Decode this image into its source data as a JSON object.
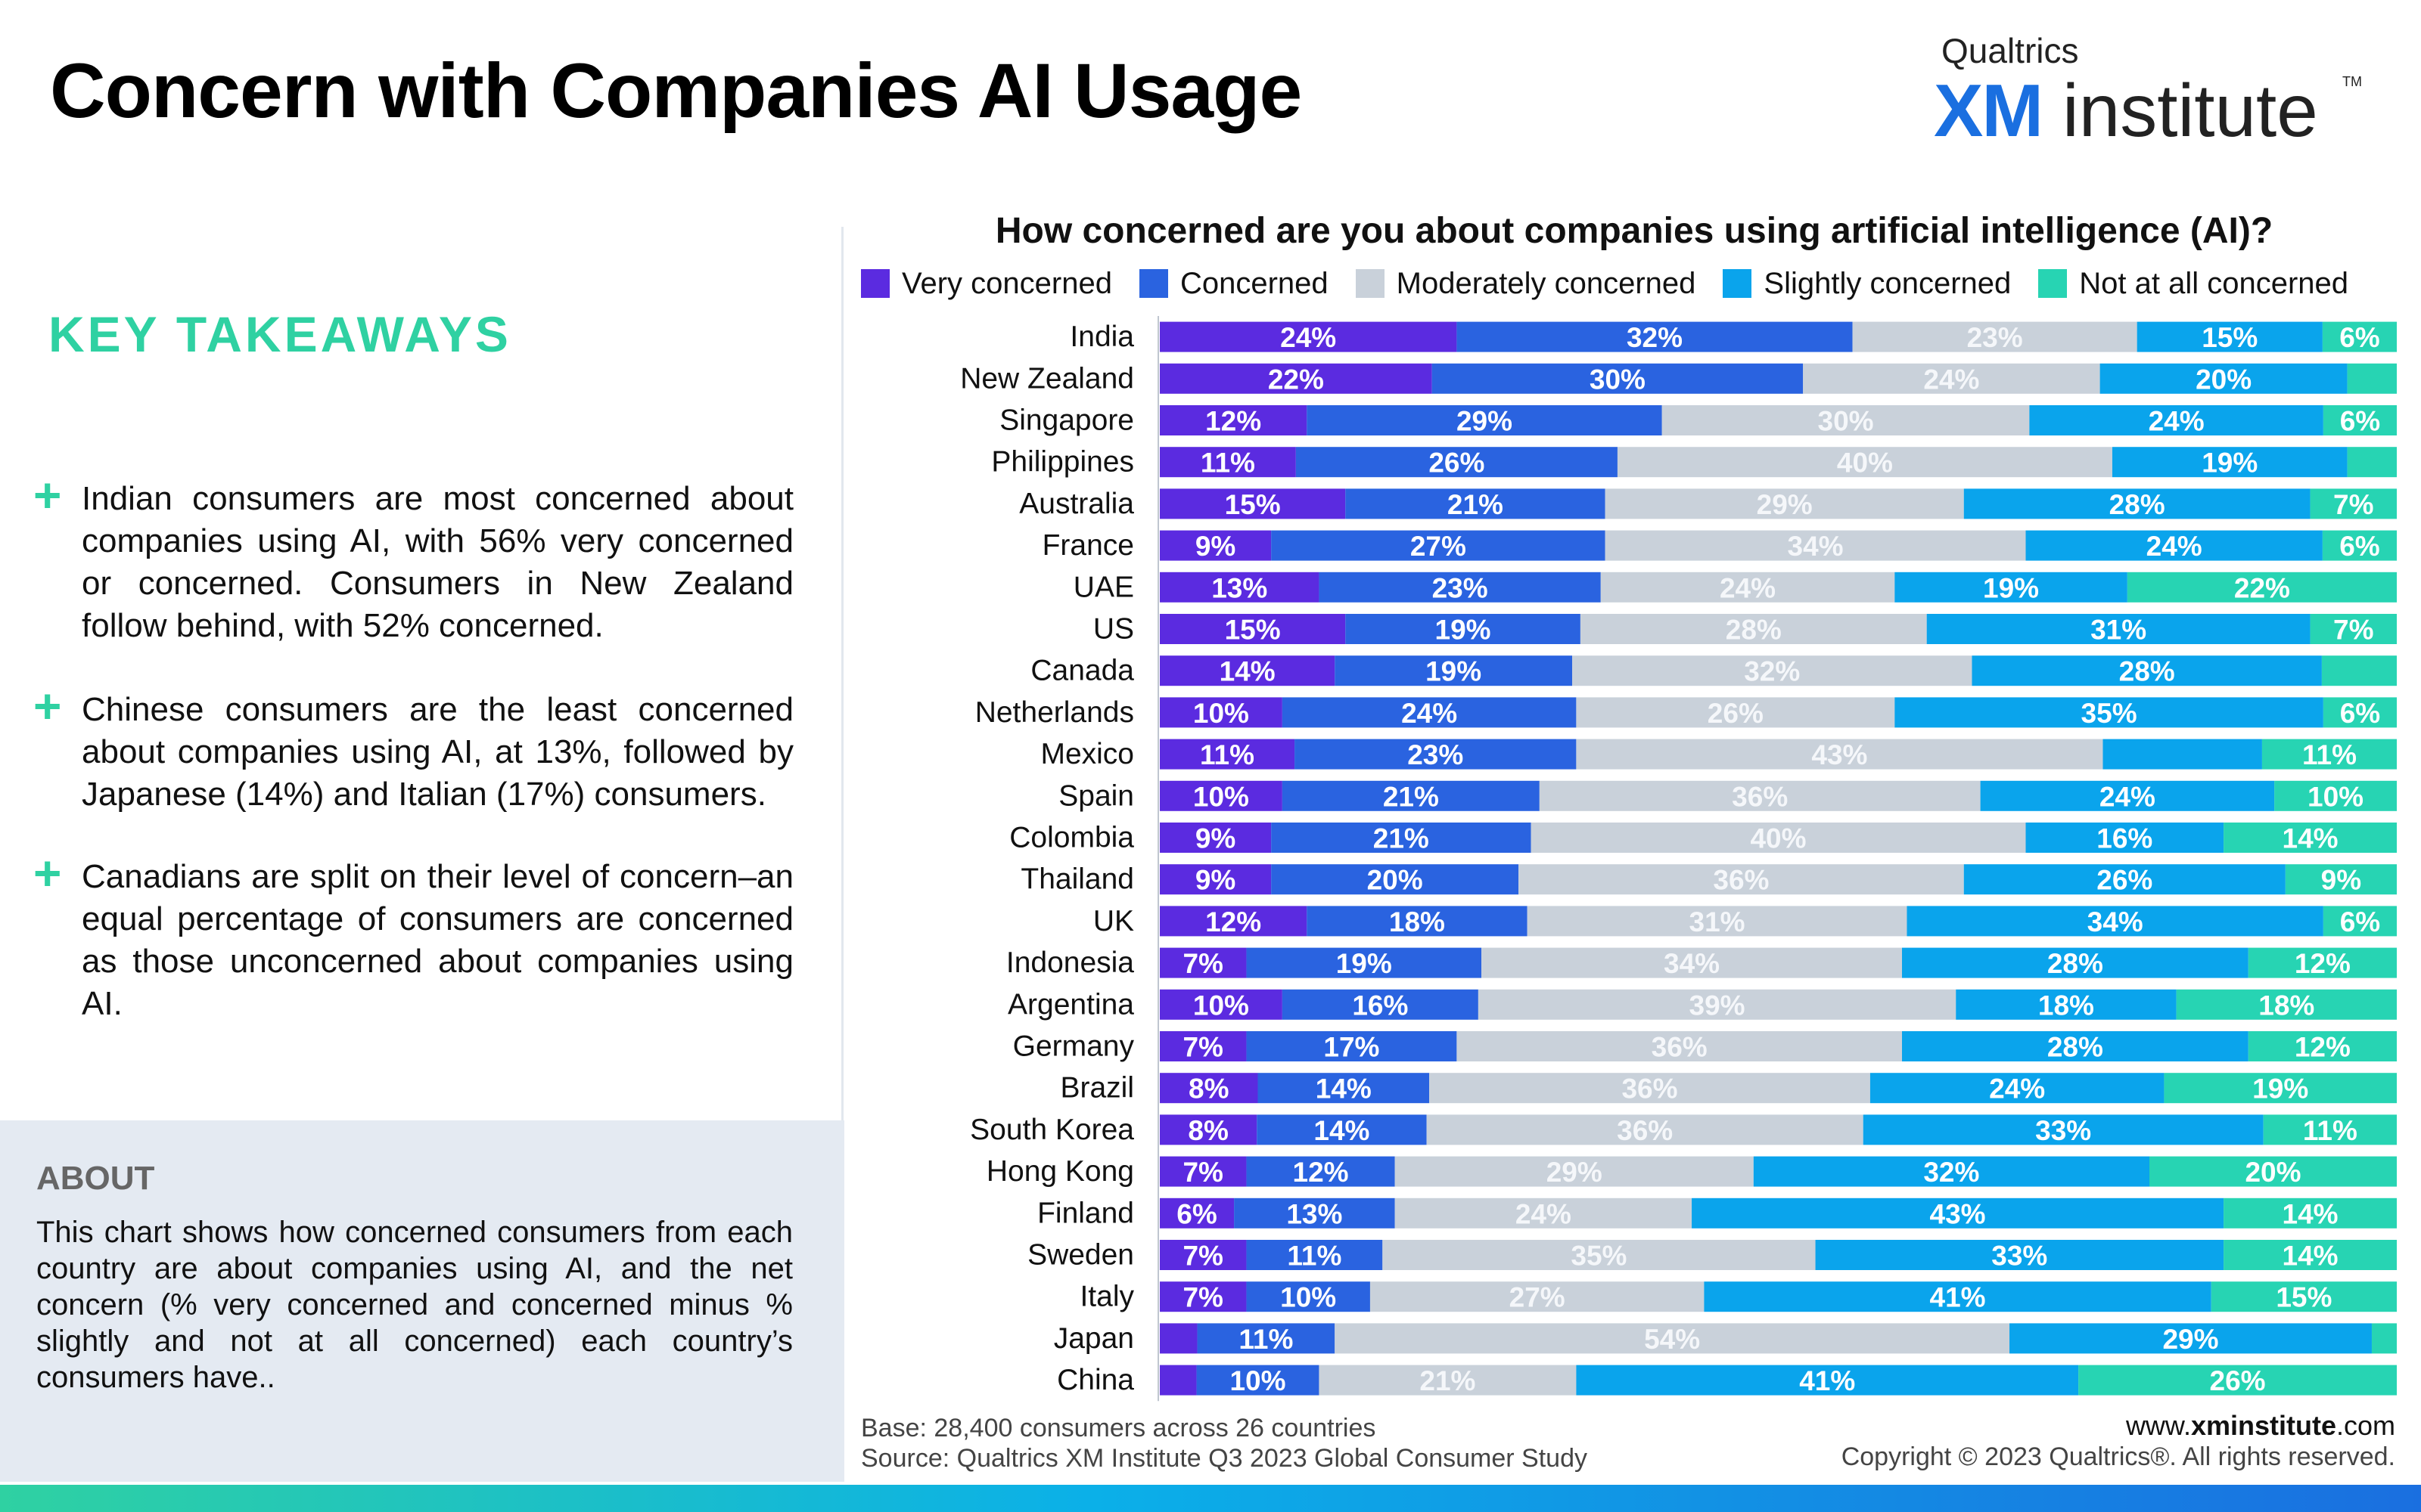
{
  "page": {
    "title": "Concern with Companies AI Usage",
    "logo": {
      "brand": "Qualtrics",
      "xm": "XM",
      "institute": "institute",
      "tm": "TM"
    }
  },
  "takeaways": {
    "heading": "KEY TAKEAWAYS",
    "items": [
      "Indian consumers are most concerned about companies using AI, with 56% very concerned or concerned. Consumers in New Zealand follow behind, with 52% concerned.",
      "Chinese consumers are the least concerned about companies using AI, at 13%, followed by Japanese (14%) and Italian (17%) consumers.",
      "Canadians are split on their level of concern–an equal percentage of consumers are concerned as those unconcerned about companies using AI."
    ]
  },
  "about": {
    "heading": "ABOUT",
    "text": "This chart shows how concerned consumers from each country are about companies using AI, and the net concern (% very concerned and concerned minus % slightly and not at all concerned) each country’s consumers have.."
  },
  "footer": {
    "base": "Base: 28,400 consumers across 26 countries",
    "source": "Source: Qualtrics XM Institute Q3 2023 Global Consumer Study",
    "site_prefix": "www.",
    "site_bold": "xminstitute",
    "site_suffix": ".com",
    "copyright": "Copyright © 2023 Qualtrics®. All rights reserved."
  },
  "chart_data": {
    "type": "bar",
    "orientation": "horizontal",
    "stacked": true,
    "title": "How concerned are you about companies using artificial intelligence (AI)?",
    "legend_position": "top",
    "categories": [
      "India",
      "New Zealand",
      "Singapore",
      "Philippines",
      "Australia",
      "France",
      "UAE",
      "US",
      "Canada",
      "Netherlands",
      "Mexico",
      "Spain",
      "Colombia",
      "Thailand",
      "UK",
      "Indonesia",
      "Argentina",
      "Germany",
      "Brazil",
      "South Korea",
      "Hong Kong",
      "Finland",
      "Sweden",
      "Italy",
      "Japan",
      "China"
    ],
    "series": [
      {
        "name": "Very concerned",
        "color": "#5b2be0",
        "label_color": "#ffffff",
        "values": [
          24,
          22,
          12,
          11,
          15,
          9,
          13,
          15,
          14,
          10,
          11,
          10,
          9,
          9,
          12,
          7,
          10,
          7,
          8,
          8,
          7,
          6,
          7,
          7,
          3,
          3
        ]
      },
      {
        "name": "Concerned",
        "color": "#2a63e0",
        "label_color": "#ffffff",
        "values": [
          32,
          30,
          29,
          26,
          21,
          27,
          23,
          19,
          19,
          24,
          23,
          21,
          21,
          20,
          18,
          19,
          16,
          17,
          14,
          14,
          12,
          13,
          11,
          10,
          11,
          10
        ]
      },
      {
        "name": "Moderately concerned",
        "color": "#c9d1da",
        "label_color": "#f5f7fa",
        "values": [
          23,
          24,
          30,
          40,
          29,
          34,
          24,
          28,
          32,
          26,
          43,
          36,
          40,
          36,
          31,
          34,
          39,
          36,
          36,
          36,
          29,
          24,
          35,
          27,
          54,
          21
        ]
      },
      {
        "name": "Slightly concerned",
        "color": "#0aa4ec",
        "label_color": "#ffffff",
        "values": [
          15,
          20,
          24,
          19,
          28,
          24,
          19,
          31,
          28,
          35,
          13,
          24,
          16,
          26,
          34,
          28,
          18,
          28,
          24,
          33,
          32,
          43,
          33,
          41,
          29,
          41
        ]
      },
      {
        "name": "Not at all concerned",
        "color": "#27d4b3",
        "label_color": "#ffffff",
        "values": [
          6,
          4,
          6,
          4,
          7,
          6,
          22,
          7,
          6,
          6,
          11,
          10,
          14,
          9,
          6,
          12,
          18,
          12,
          19,
          11,
          20,
          14,
          14,
          15,
          2,
          26
        ]
      }
    ],
    "data_labels": [
      [
        "24%",
        "32%",
        "23%",
        "15%",
        "6%"
      ],
      [
        "22%",
        "30%",
        "24%",
        "20%",
        ""
      ],
      [
        "12%",
        "29%",
        "30%",
        "24%",
        "6%"
      ],
      [
        "11%",
        "26%",
        "40%",
        "19%",
        ""
      ],
      [
        "15%",
        "21%",
        "29%",
        "28%",
        "7%"
      ],
      [
        "9%",
        "27%",
        "34%",
        "24%",
        "6%"
      ],
      [
        "13%",
        "23%",
        "24%",
        "19%",
        "22%"
      ],
      [
        "15%",
        "19%",
        "28%",
        "31%",
        "7%"
      ],
      [
        "14%",
        "19%",
        "32%",
        "28%",
        ""
      ],
      [
        "10%",
        "24%",
        "26%",
        "35%",
        "6%"
      ],
      [
        "11%",
        "23%",
        "43%",
        "",
        "11%"
      ],
      [
        "10%",
        "21%",
        "36%",
        "24%",
        "10%"
      ],
      [
        "9%",
        "21%",
        "40%",
        "16%",
        "14%"
      ],
      [
        "9%",
        "20%",
        "36%",
        "26%",
        "9%"
      ],
      [
        "12%",
        "18%",
        "31%",
        "34%",
        "6%"
      ],
      [
        "7%",
        "19%",
        "34%",
        "28%",
        "12%"
      ],
      [
        "10%",
        "16%",
        "39%",
        "18%",
        "18%"
      ],
      [
        "7%",
        "17%",
        "36%",
        "28%",
        "12%"
      ],
      [
        "8%",
        "14%",
        "36%",
        "24%",
        "19%"
      ],
      [
        "8%",
        "14%",
        "36%",
        "33%",
        "11%"
      ],
      [
        "7%",
        "12%",
        "29%",
        "32%",
        "20%"
      ],
      [
        "6%",
        "13%",
        "24%",
        "43%",
        "14%"
      ],
      [
        "7%",
        "11%",
        "35%",
        "33%",
        "14%"
      ],
      [
        "7%",
        "10%",
        "27%",
        "41%",
        "15%"
      ],
      [
        "",
        "11%",
        "54%",
        "29%",
        ""
      ],
      [
        "",
        "10%",
        "21%",
        "41%",
        "26%"
      ]
    ]
  }
}
